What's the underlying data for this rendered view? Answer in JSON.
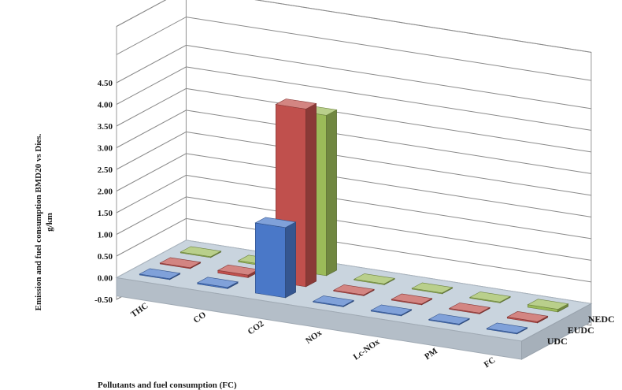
{
  "chart_data": {
    "type": "bar",
    "subtype": "3d-column",
    "title": "",
    "ylabel_lines": [
      "Emission and fuel consumption BMD20 vs Dies.",
      "g/km"
    ],
    "xlabel": "Pollutants and fuel consumption (FC)",
    "categories": [
      "THC",
      "CO",
      "CO2",
      "NOx",
      "Lc-NOx",
      "PM",
      "FC"
    ],
    "yticks": [
      "-0.50",
      "0.00",
      "0.50",
      "1.00",
      "1.50",
      "2.00",
      "2.50",
      "3.00",
      "3.50",
      "4.00",
      "4.50"
    ],
    "ylim": [
      -0.5,
      4.5
    ],
    "grid": true,
    "series": [
      {
        "name": "UDC",
        "color": "#4a78c8",
        "values": [
          0.02,
          0.03,
          1.62,
          0.02,
          0.02,
          0.02,
          0.02
        ]
      },
      {
        "name": "EUDC",
        "color": "#c0504d",
        "values": [
          0.02,
          0.06,
          4.1,
          0.02,
          0.02,
          0.02,
          0.03
        ]
      },
      {
        "name": "NEDC",
        "color": "#9bbb59",
        "values": [
          0.02,
          0.03,
          3.7,
          0.02,
          0.02,
          0.02,
          0.06
        ]
      }
    ]
  }
}
